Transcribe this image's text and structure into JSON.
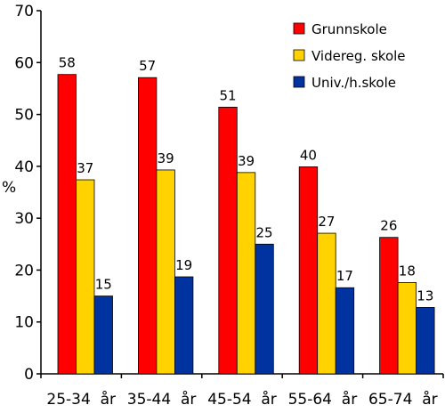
{
  "chart_data": {
    "type": "bar",
    "title": "",
    "xlabel": "",
    "ylabel": "%",
    "ylim": [
      0,
      70
    ],
    "yticks": [
      0,
      10,
      20,
      30,
      40,
      50,
      60,
      70
    ],
    "grid": false,
    "legend_position": "top-right",
    "categories": [
      "25-34  år",
      "35-44  år",
      "45-54  år",
      "55-64  år",
      "65-74  år"
    ],
    "series": [
      {
        "name": "Grunnskole",
        "color": "#ff0000",
        "values": [
          57.7,
          57.1,
          51.4,
          39.9,
          26.3
        ],
        "labels": [
          "58",
          "57",
          "51",
          "40",
          "26"
        ]
      },
      {
        "name": "Videreg. skole",
        "color": "#ffd200",
        "values": [
          37.4,
          39.3,
          38.8,
          27.1,
          17.6
        ],
        "labels": [
          "37",
          "39",
          "39",
          "27",
          "18"
        ]
      },
      {
        "name": "Univ./h.skole",
        "color": "#0033a0",
        "values": [
          15.0,
          18.7,
          25.0,
          16.6,
          12.8
        ],
        "labels": [
          "15",
          "19",
          "25",
          "17",
          "13"
        ]
      }
    ]
  }
}
